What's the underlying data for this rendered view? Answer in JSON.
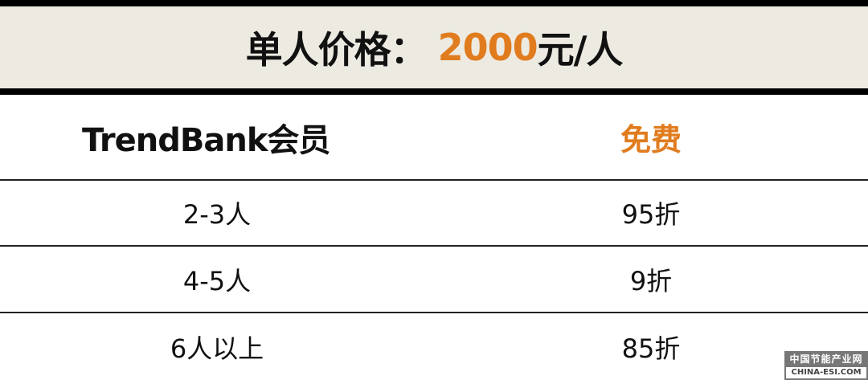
{
  "header": {
    "label": "单人价格：",
    "price": "2000",
    "unit": "元/人"
  },
  "member_row": {
    "name": "TrendBank会员",
    "value": "免费"
  },
  "rows": [
    {
      "group": "2-3人",
      "discount": "95折"
    },
    {
      "group": "4-5人",
      "discount": "9折"
    },
    {
      "group": "6人以上",
      "discount": "85折"
    }
  ],
  "watermark": {
    "cn": "中国节能产业网",
    "en": "CHINA-ESI.COM"
  },
  "colors": {
    "accent": "#e07c1e",
    "header_bg": "#edeae2"
  }
}
